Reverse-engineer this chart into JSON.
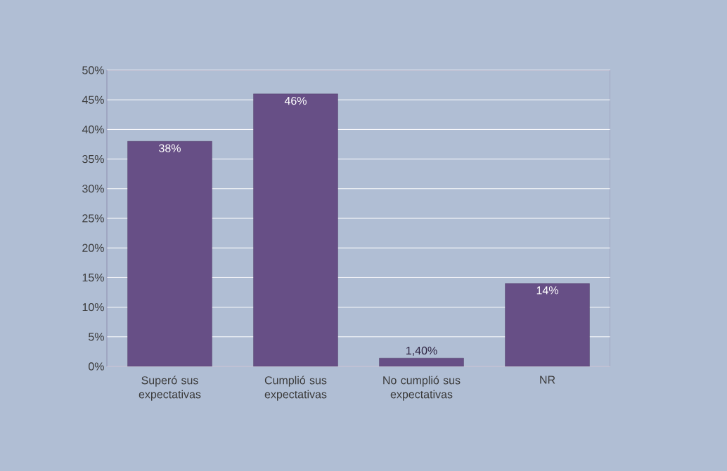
{
  "chart_data": {
    "type": "bar",
    "categories": [
      "Superó sus expectativas",
      "Cumplió sus expectativas",
      "No cumplió sus expectativas",
      "NR"
    ],
    "values": [
      38,
      46,
      1.4,
      14
    ],
    "value_labels": [
      "38%",
      "46%",
      "1,40%",
      "14%"
    ],
    "color": "#674f86",
    "ylim": [
      0,
      50
    ],
    "yticks": [
      {
        "value": 0,
        "label": "0%"
      },
      {
        "value": 5,
        "label": "5%"
      },
      {
        "value": 10,
        "label": "10%"
      },
      {
        "value": 15,
        "label": "15%"
      },
      {
        "value": 20,
        "label": "20%"
      },
      {
        "value": 25,
        "label": "25%"
      },
      {
        "value": 30,
        "label": "30%"
      },
      {
        "value": 35,
        "label": "35%"
      },
      {
        "value": 40,
        "label": "40%"
      },
      {
        "value": 45,
        "label": "45%"
      },
      {
        "value": 50,
        "label": "50%"
      }
    ],
    "grid": "y"
  }
}
